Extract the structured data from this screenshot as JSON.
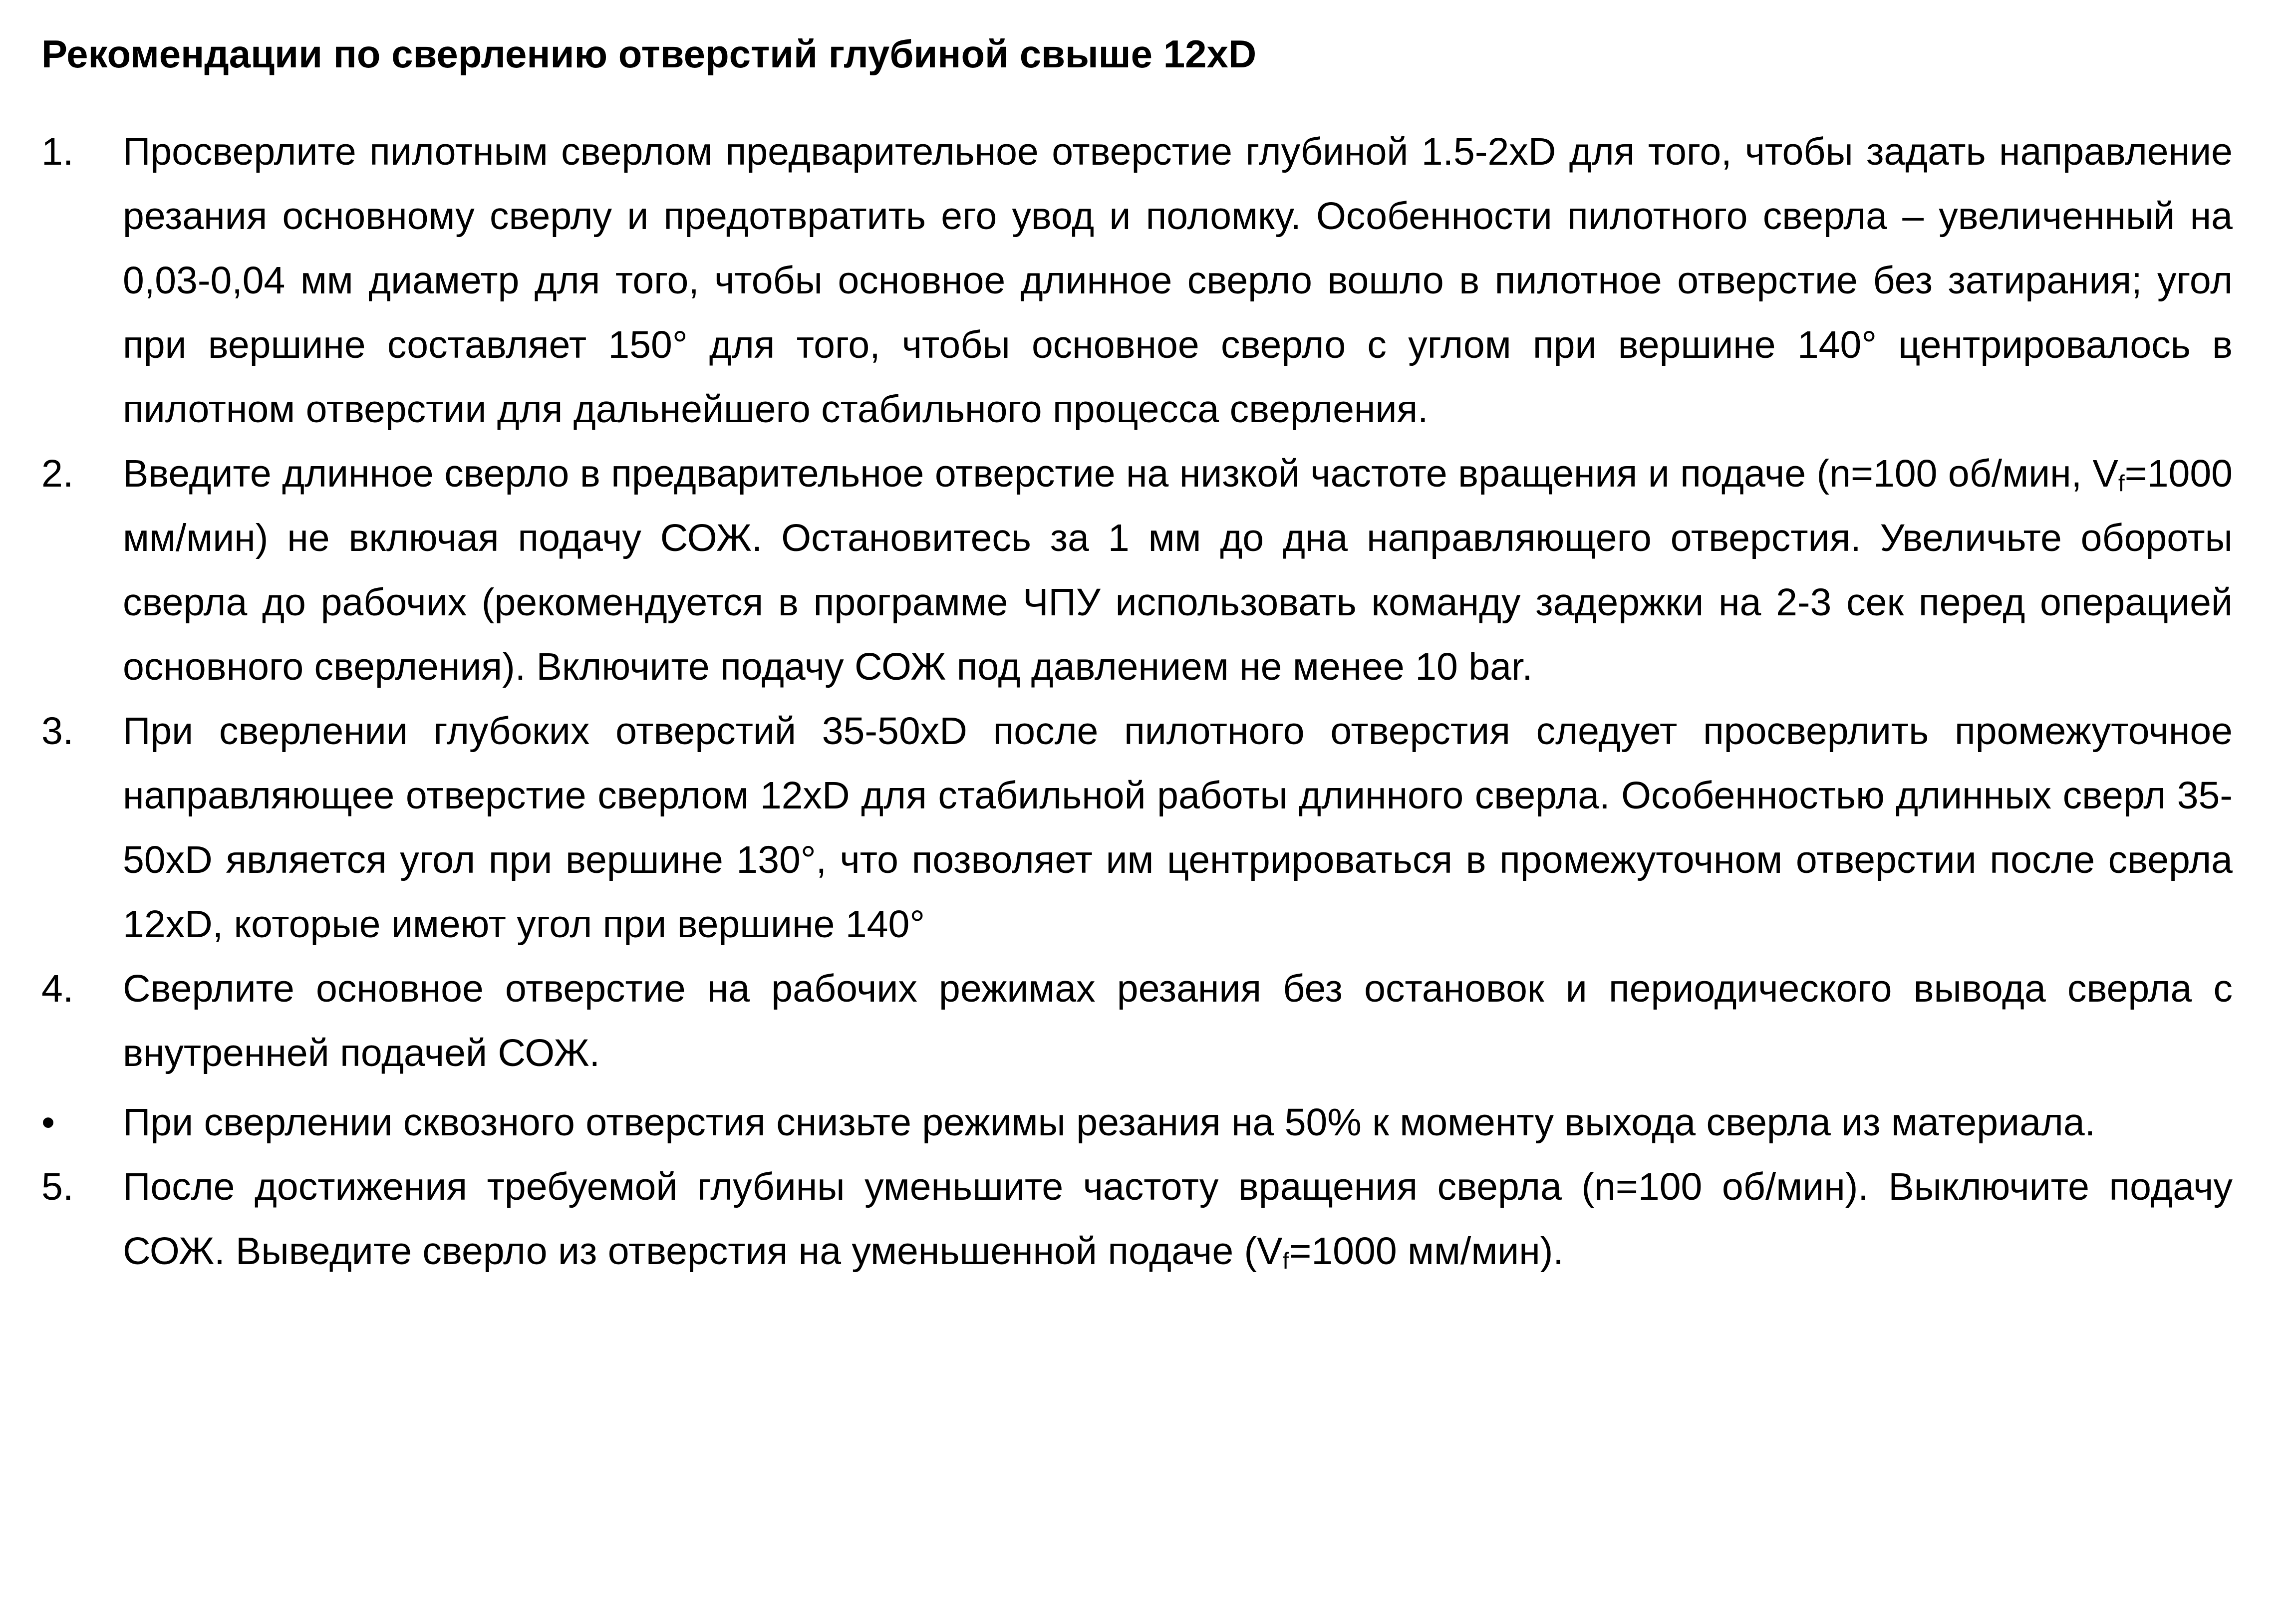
{
  "title": "Рекомендации по сверлению отверстий глубиной свыше 12xD",
  "items": [
    {
      "marker": "1.",
      "segments": [
        {
          "text": "Просверлите пилотным сверлом предварительное отверстие глубиной 1.5-2xD для того, чтобы задать направление резания основному сверлу и предотвратить его увод и поломку. Особенности пилотного сверла – увеличенный на 0,03-0,04 мм диаметр для того, чтобы основное длинное сверло вошло в пилотное отверстие без затирания; угол при вершине составляет 150° для того, чтобы основное сверло с углом при вершине 140° центрировалось в пилотном отверстии для дальнейшего стабильного процесса сверления."
        }
      ]
    },
    {
      "marker": "2.",
      "segments": [
        {
          "text": "Введите длинное сверло в предварительное отверстие на низкой частоте вращения и подаче (n=100 об/мин, V"
        },
        {
          "sub": "f"
        },
        {
          "text": "=1000 мм/мин) не включая подачу СОЖ. Остановитесь за 1 мм до дна направляющего отверстия. Увеличьте обороты сверла до рабочих (рекомендуется в программе ЧПУ использовать команду задержки на 2-3 сек перед операцией основного сверления). Включите подачу СОЖ под давлением не менее 10 bar."
        }
      ]
    },
    {
      "marker": "3.",
      "segments": [
        {
          "text": "При сверлении глубоких отверстий 35-50xD после пилотного отверстия следует просверлить промежуточное направляющее отверстие сверлом 12xD для стабильной работы длинного сверла. Особенностью длинных сверл 35-50xD является угол при вершине 130°, что позволяет им центрироваться в промежуточном отверстии после сверла 12xD, которые имеют угол при вершине 140°"
        }
      ]
    },
    {
      "marker": "4.",
      "segments": [
        {
          "text": "Сверлите основное отверстие на рабочих режимах резания без остановок и периодического вывода сверла с внутренней подачей СОЖ."
        }
      ]
    },
    {
      "marker": "•",
      "segments": [
        {
          "text": "При сверлении сквозного отверстия снизьте режимы резания на 50% к моменту выхода сверла из материала."
        }
      ]
    },
    {
      "marker": "5.",
      "segments": [
        {
          "text": "После достижения требуемой глубины уменьшите частоту вращения сверла (n=100 об/мин). Выключите подачу СОЖ. Выведите сверло из отверстия на уменьшенной подаче (V"
        },
        {
          "sub": "f"
        },
        {
          "text": "=1000 мм/мин)."
        }
      ]
    }
  ]
}
